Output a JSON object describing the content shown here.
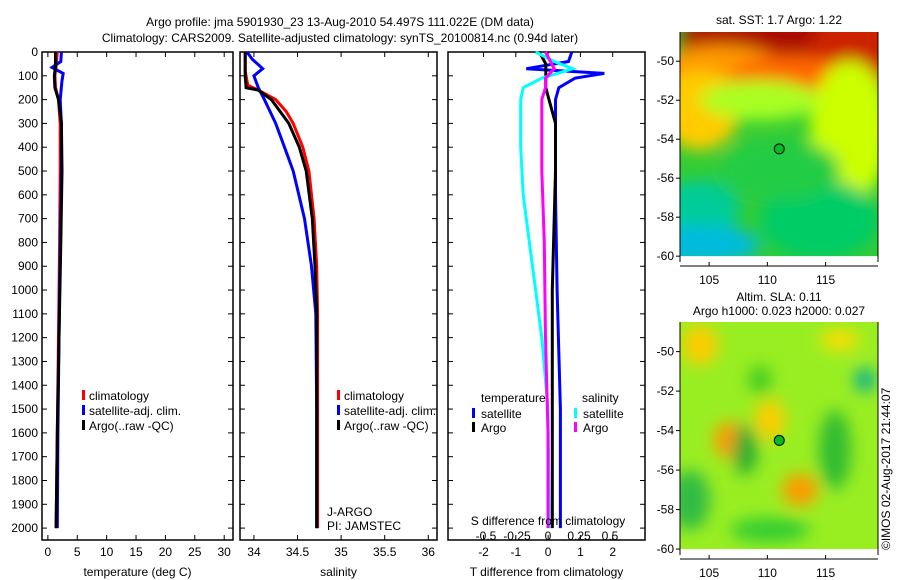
{
  "title": {
    "line1": "Argo profile: jma 5901930_23 13-Aug-2010 54.497S 111.022E (DM data)",
    "line2": "Climatology: CARS2009. Satellite-adjusted climatology: synTS_20100814.nc (0.94d later)"
  },
  "colors": {
    "climatology": "#ff0000",
    "satellite": "#0000ff",
    "argo": "#000000",
    "sal_satellite": "#00ffff",
    "sal_argo": "#ff00ff"
  },
  "chart_data": [
    {
      "type": "line",
      "id": "temperature",
      "xlabel": "temperature (deg C)",
      "xlim": [
        -1,
        31.5
      ],
      "xticks": [
        0,
        5,
        10,
        15,
        20,
        25,
        30
      ],
      "ylim": [
        0,
        2050
      ],
      "yticks": [
        0,
        100,
        200,
        300,
        400,
        500,
        600,
        700,
        800,
        900,
        1000,
        1100,
        1200,
        1300,
        1400,
        1500,
        1600,
        1700,
        1800,
        1900,
        2000
      ],
      "legend": [
        "climatology",
        "satellite-adj. clim.",
        "Argo(..raw -QC)"
      ],
      "series": [
        {
          "name": "climatology",
          "color": "#ff0000",
          "depth": [
            0,
            60,
            100,
            150,
            200,
            300,
            500,
            800,
            1200,
            1600,
            2000
          ],
          "values": [
            1.6,
            1.4,
            1.2,
            1.3,
            1.8,
            2.1,
            2.1,
            2.0,
            1.8,
            1.6,
            1.4
          ]
        },
        {
          "name": "satellite-adj. clim.",
          "color": "#0000ff",
          "depth": [
            0,
            40,
            65,
            90,
            120,
            200,
            300,
            500,
            800,
            1200,
            1600,
            2000
          ],
          "values": [
            2.3,
            2.2,
            0.7,
            2.6,
            2.4,
            2.1,
            2.3,
            2.3,
            2.1,
            1.9,
            1.7,
            1.6
          ]
        },
        {
          "name": "Argo(..raw -QC)",
          "color": "#000000",
          "depth": [
            0,
            60,
            100,
            150,
            200,
            300,
            500,
            800,
            1200,
            1600,
            2000
          ],
          "values": [
            1.3,
            1.3,
            1.1,
            1.2,
            1.8,
            2.3,
            2.4,
            2.2,
            1.9,
            1.6,
            1.4
          ]
        }
      ]
    },
    {
      "type": "line",
      "id": "salinity",
      "xlabel": "salinity",
      "xlim": [
        33.84,
        36.1
      ],
      "xticks": [
        34,
        34.5,
        35,
        35.5,
        36
      ],
      "ylim": [
        0,
        2050
      ],
      "legend": [
        "climatology",
        "satellite-adj. clim.",
        "Argo(..raw -QC)"
      ],
      "annotation": [
        "J-ARGO",
        "PI: JAMSTEC"
      ],
      "series": [
        {
          "name": "climatology",
          "color": "#ff0000",
          "depth": [
            0,
            80,
            140,
            160,
            200,
            250,
            300,
            400,
            500,
            700,
            900,
            1100,
            1500,
            2000
          ],
          "values": [
            33.9,
            33.9,
            33.93,
            34.05,
            34.25,
            34.37,
            34.45,
            34.56,
            34.63,
            34.69,
            34.72,
            34.73,
            34.73,
            34.73
          ]
        },
        {
          "name": "satellite-adj. clim.",
          "color": "#0000ff",
          "depth": [
            0,
            30,
            70,
            100,
            150,
            200,
            300,
            400,
            500,
            700,
            900,
            1100,
            1500,
            2000
          ],
          "values": [
            33.92,
            33.98,
            34.1,
            34.0,
            34.05,
            34.12,
            34.25,
            34.35,
            34.45,
            34.58,
            34.66,
            34.71,
            34.72,
            34.72
          ]
        },
        {
          "name": "Argo(..raw -QC)",
          "color": "#000000",
          "depth": [
            0,
            100,
            150,
            160,
            200,
            250,
            300,
            400,
            500,
            700,
            900,
            1100,
            1500,
            2000
          ],
          "values": [
            33.9,
            33.9,
            33.91,
            34.05,
            34.2,
            34.3,
            34.4,
            34.52,
            34.6,
            34.67,
            34.7,
            34.72,
            34.72,
            34.72
          ]
        }
      ]
    },
    {
      "type": "line",
      "id": "difference",
      "xlabel": "T difference from climatology",
      "xlabel2": "S difference from climatology",
      "xlim": [
        -3.1,
        3.0
      ],
      "xticks": [
        -2,
        -1,
        0,
        1,
        2
      ],
      "xticks2": [
        -0.5,
        -0.25,
        0,
        0.25,
        0.5
      ],
      "xtick2_labels": [
        "-0.5",
        "-0.25",
        "0",
        "0.25",
        "0.5"
      ],
      "ylim": [
        0,
        2050
      ],
      "legend_temperature": {
        "title": "temperature",
        "items": [
          "satellite",
          "Argo"
        ]
      },
      "legend_salinity": {
        "title": "salinity",
        "items": [
          "satellite",
          "Argo"
        ]
      },
      "series": [
        {
          "name": "T satellite",
          "unit": "T",
          "color": "#0000ff",
          "depth": [
            0,
            40,
            70,
            90,
            110,
            150,
            200,
            300,
            600,
            1000,
            1500,
            2000
          ],
          "values": [
            0.7,
            0.6,
            -0.7,
            1.7,
            0.8,
            0.3,
            0.2,
            0.2,
            0.2,
            0.25,
            0.35,
            0.35
          ]
        },
        {
          "name": "T Argo",
          "unit": "T",
          "color": "#000000",
          "depth": [
            0,
            50,
            100,
            150,
            200,
            300,
            500,
            1000,
            1500,
            2000
          ],
          "values": [
            -0.3,
            -0.1,
            -0.1,
            -0.1,
            0.0,
            0.2,
            0.2,
            0.1,
            0.1,
            0.1
          ]
        },
        {
          "name": "S satellite",
          "unit": "S",
          "color": "#00ffff",
          "depth": [
            0,
            40,
            70,
            110,
            150,
            200,
            300,
            400,
            600,
            800,
            1000,
            1200,
            1500,
            2000
          ],
          "values": [
            -0.1,
            0.05,
            0.2,
            -0.05,
            -0.2,
            -0.22,
            -0.22,
            -0.22,
            -0.2,
            -0.15,
            -0.1,
            -0.05,
            0.0,
            0.01
          ]
        },
        {
          "name": "S Argo",
          "unit": "S",
          "color": "#ff00ff",
          "depth": [
            0,
            70,
            110,
            150,
            200,
            300,
            500,
            800,
            1200,
            1600,
            2000
          ],
          "values": [
            -0.02,
            0.05,
            -0.02,
            -0.02,
            -0.05,
            -0.05,
            -0.05,
            -0.03,
            -0.02,
            0.0,
            0.0
          ]
        }
      ]
    },
    {
      "type": "heatmap",
      "id": "sst-map",
      "title": "sat. SST: 1.7 Argo: 1.22",
      "xlim": [
        102.5,
        119.5
      ],
      "ylim": [
        -60.3,
        -48.5
      ],
      "xticks": [
        105,
        110,
        115
      ],
      "yticks": [
        -50,
        -52,
        -54,
        -56,
        -58,
        -60
      ],
      "marker": {
        "lon": 111.022,
        "lat": -54.497
      }
    },
    {
      "type": "heatmap",
      "id": "sla-map",
      "title": "Altim. SLA: 0.11",
      "subtitle": "Argo h1000: 0.023 h2000: 0.027",
      "xlim": [
        102.5,
        119.5
      ],
      "ylim": [
        -60.3,
        -48.5
      ],
      "xticks": [
        105,
        110,
        115
      ],
      "yticks": [
        -50,
        -52,
        -54,
        -56,
        -58,
        -60
      ],
      "marker": {
        "lon": 111.022,
        "lat": -54.497
      }
    }
  ],
  "credit": "©IMOS 02-Aug-2017 21:44:07"
}
